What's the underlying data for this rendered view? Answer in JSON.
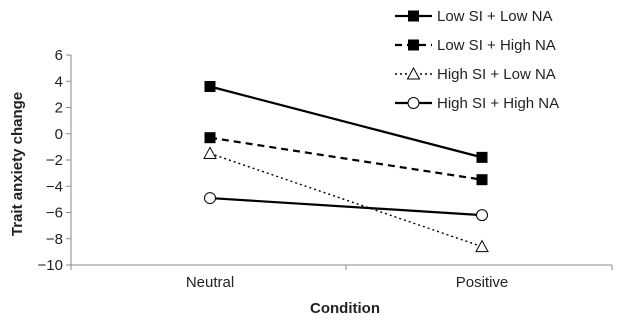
{
  "chart_data": {
    "type": "line",
    "title": "",
    "xlabel": "Condition",
    "ylabel": "Trait anxiety change",
    "categories": [
      "Neutral",
      "Positive"
    ],
    "ylim": [
      -10,
      6
    ],
    "yticks": [
      -10,
      -8,
      -6,
      -4,
      -2,
      0,
      2,
      4,
      6
    ],
    "ytick_labels": [
      "−10",
      "−8",
      "−6",
      "−4",
      "−2",
      "0",
      "2",
      "4",
      "6"
    ],
    "grid": false,
    "legend_position": "top-right",
    "series": [
      {
        "name": "Low SI + Low NA",
        "values": [
          3.6,
          -1.8
        ],
        "line_style": "solid",
        "marker": "filled-square",
        "color": "#000000"
      },
      {
        "name": "Low SI + High NA",
        "values": [
          -0.3,
          -3.5
        ],
        "line_style": "dashed",
        "marker": "filled-square",
        "color": "#000000"
      },
      {
        "name": "High SI + Low NA",
        "values": [
          -1.5,
          -8.6
        ],
        "line_style": "dotted",
        "marker": "open-triangle",
        "color": "#000000"
      },
      {
        "name": "High SI + High NA",
        "values": [
          -4.9,
          -6.2
        ],
        "line_style": "solid",
        "marker": "open-circle",
        "color": "#000000"
      }
    ]
  }
}
